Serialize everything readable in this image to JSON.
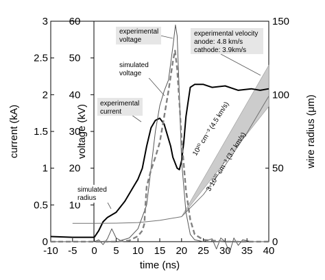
{
  "chart_data": {
    "type": "line",
    "x_axis": {
      "label": "time (ns)",
      "range": [
        -10,
        40
      ],
      "ticks": [
        -10,
        -5,
        0,
        5,
        10,
        15,
        20,
        25,
        30,
        35,
        40
      ]
    },
    "y_axes": {
      "current": {
        "label": "current (kA)",
        "range": [
          0,
          3
        ],
        "ticks": [
          0,
          0.5,
          1,
          1.5,
          2,
          2.5,
          3
        ]
      },
      "voltage": {
        "label": "voltage (kV)",
        "range": [
          0,
          60
        ],
        "ticks": [
          10,
          20,
          30,
          40,
          50,
          60
        ]
      },
      "radius": {
        "label": "wire radius (μm)",
        "range": [
          0,
          150
        ],
        "ticks": [
          0,
          50,
          100,
          150
        ]
      }
    },
    "series": [
      {
        "name": "experimental current",
        "axis": "current",
        "style": "solid-bold",
        "color": "#000000",
        "x": [
          -10,
          -5,
          0,
          1,
          2,
          3,
          5,
          7,
          9,
          10,
          11,
          12,
          13,
          14,
          15,
          16,
          17,
          17.5,
          18,
          19,
          19.5,
          20,
          20.5,
          21,
          21.5,
          22,
          23,
          25,
          27,
          30,
          33,
          36,
          38,
          40
        ],
        "y": [
          0.07,
          0.06,
          0.06,
          0.15,
          0.27,
          0.33,
          0.4,
          0.55,
          0.75,
          0.85,
          1.0,
          1.3,
          1.55,
          1.65,
          1.68,
          1.6,
          1.4,
          1.3,
          1.15,
          1.0,
          0.98,
          1.1,
          1.35,
          1.7,
          1.9,
          2.1,
          2.14,
          2.14,
          2.1,
          2.12,
          2.06,
          2.08,
          2.06,
          2.08
        ]
      },
      {
        "name": "experimental voltage",
        "axis": "voltage",
        "style": "solid-thin",
        "color": "#555555",
        "x": [
          -10,
          -5,
          0,
          1,
          2,
          3,
          4,
          5,
          6,
          8,
          10,
          12,
          13,
          14,
          15,
          16,
          17,
          18,
          18.6,
          19,
          19.5,
          20,
          21,
          22,
          23,
          25,
          27,
          28,
          29,
          30,
          31,
          32,
          33,
          34,
          36,
          40
        ],
        "y": [
          0,
          0,
          0,
          0.5,
          -0.8,
          0.8,
          3.5,
          1,
          0.3,
          1,
          3.5,
          10,
          20,
          30,
          37,
          41,
          44,
          53,
          59,
          56,
          40,
          22,
          8,
          2,
          0.5,
          0,
          0.8,
          -2,
          1,
          0,
          -3,
          1,
          -1,
          0.5,
          0,
          0
        ]
      },
      {
        "name": "simulated voltage",
        "axis": "voltage",
        "style": "dashed-bold",
        "color": "#808080",
        "x": [
          -10,
          0,
          5,
          8,
          10,
          11,
          11.5,
          11.6,
          12,
          13,
          14,
          15,
          16,
          17,
          18,
          18.5,
          19,
          19.5,
          20,
          21,
          22,
          23,
          25,
          30,
          40
        ],
        "y": [
          0,
          0,
          0,
          0.3,
          1.5,
          3,
          5,
          8,
          15,
          19.5,
          23,
          27,
          34,
          41,
          49,
          52,
          47,
          38,
          28,
          14,
          6,
          2,
          0.5,
          0,
          0
        ]
      },
      {
        "name": "simulated radius",
        "axis": "radius",
        "style": "solid-thin",
        "color": "#707070",
        "x": [
          -5,
          0,
          5,
          10,
          15,
          20,
          25,
          30,
          35,
          40
        ],
        "y": [
          12.5,
          12.5,
          12.6,
          13,
          14.5,
          17,
          32,
          52,
          74,
          99
        ]
      }
    ],
    "bands": [
      {
        "name": "experimental velocity",
        "axis": "radius",
        "x": [
          20,
          40
        ],
        "y_low": [
          17,
          92
        ],
        "y_high": [
          17,
          120
        ],
        "color": "#cccccc"
      }
    ],
    "annotations": [
      {
        "text": "experimental",
        "note_line": 1
      },
      {
        "text": "voltage",
        "note_line": 2
      },
      {
        "text": "simulated",
        "note_line": 1
      },
      {
        "text": "voltage",
        "note_line": 2
      },
      {
        "text": "experimental",
        "note_line": 1
      },
      {
        "text": "current",
        "note_line": 2
      },
      {
        "text": "simulated",
        "note_line": 1
      },
      {
        "text": "radius",
        "note_line": 2
      },
      {
        "text": "experimental velocity"
      },
      {
        "text": "anode:    4.8 km/s"
      },
      {
        "text": "cathode:  3.9km/s"
      },
      {
        "text": "10²⁰ cm⁻³ (4.5 km/s)"
      },
      {
        "text": "3·10²⁰ cm⁻³ (3.7 km/s)"
      }
    ],
    "grid": false,
    "legend": "none"
  }
}
